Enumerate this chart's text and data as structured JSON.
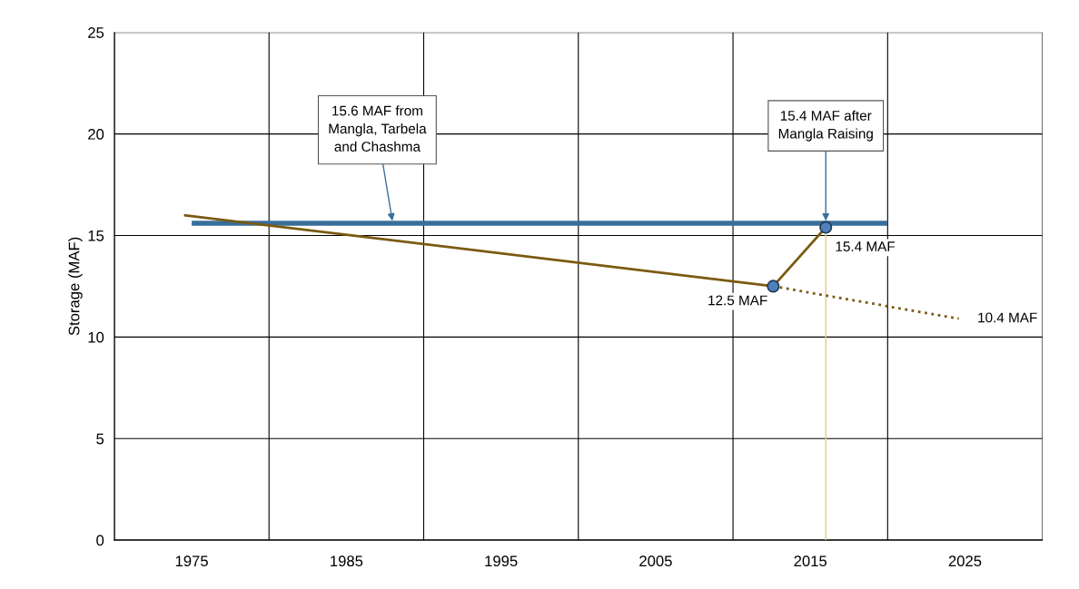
{
  "chart_data": {
    "type": "line",
    "ylabel": "Storage (MAF)",
    "xlim": [
      1970,
      2030
    ],
    "ylim": [
      0,
      25
    ],
    "yticks": [
      0,
      5,
      10,
      15,
      20,
      25
    ],
    "xticks": [
      {
        "value": 1970,
        "label": null
      },
      {
        "value": 1975,
        "label": "1975"
      },
      {
        "value": 1980,
        "label": null
      },
      {
        "value": 1985,
        "label": "1985"
      },
      {
        "value": 1990,
        "label": null
      },
      {
        "value": 1995,
        "label": "1995"
      },
      {
        "value": 2000,
        "label": null
      },
      {
        "value": 2005,
        "label": "2005"
      },
      {
        "value": 2010,
        "label": null
      },
      {
        "value": 2015,
        "label": "2015"
      },
      {
        "value": 2020,
        "label": null
      },
      {
        "value": 2025,
        "label": "2025"
      },
      {
        "value": 2030,
        "label": null
      }
    ],
    "grid": true,
    "series": [
      {
        "color": "#3a6e9a",
        "x": [
          1975,
          2020
        ],
        "values": [
          15.6,
          15.6
        ],
        "line_style": "solid"
      },
      {
        "color": "#e8c98a",
        "x": [
          2016,
          2016
        ],
        "values": [
          0,
          15.4
        ],
        "line_style": "solid"
      },
      {
        "color": "#7a5a10",
        "x": [
          1974.5,
          2012.6,
          2016
        ],
        "values": [
          16.0,
          12.5,
          15.4
        ],
        "line_style": "solid"
      },
      {
        "color": "#7a5a10",
        "x": [
          2012.6,
          2024.6
        ],
        "values": [
          12.5,
          10.9
        ],
        "line_style": "dotted"
      },
      {
        "type": "scatter",
        "color": "#4f81bd",
        "x": [
          2012.6,
          2016
        ],
        "values": [
          12.5,
          15.4
        ],
        "marker": "circle"
      }
    ],
    "annotations": [
      {
        "text": "15.6 MAF from\nMangla, Tarbela\nand Chashma",
        "x": 1988,
        "y": 15.6
      },
      {
        "text": "15.4 MAF after\nMangla Raising",
        "x": 2016,
        "y": 15.6
      },
      {
        "text": "15.4 MAF",
        "x": 2016,
        "y": 15.4
      },
      {
        "text": "12.5 MAF",
        "x": 2012.6,
        "y": 12.5
      },
      {
        "text": "10.4 MAF",
        "x": 2024.6,
        "y": 10.9
      }
    ]
  }
}
